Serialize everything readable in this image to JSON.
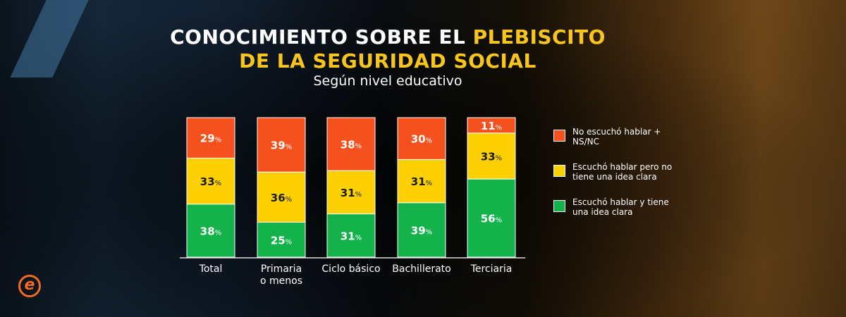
{
  "title_part1": "CONOCIMIENTO SOBRE EL ",
  "title_part2": "PLEBISCITO",
  "title_part3": "DE LA SEGURIDAD SOCIAL",
  "subtitle": "Según nivel educativo",
  "logo": "e",
  "chart_data": {
    "type": "bar",
    "stacked": true,
    "title": "CONOCIMIENTO SOBRE EL PLEBISCITO DE LA SEGURIDAD SOCIAL",
    "subtitle": "Según nivel educativo",
    "categories": [
      "Total",
      "Primaria o menos",
      "Ciclo básico",
      "Bachillerato",
      "Terciaria"
    ],
    "series": [
      {
        "name": "Escuchó hablar y tiene una idea clara",
        "color": "#14b24a",
        "values": [
          38,
          25,
          31,
          39,
          56
        ]
      },
      {
        "name": "Escuchó hablar pero no tiene una idea clara",
        "color": "#fdd000",
        "values": [
          33,
          36,
          31,
          31,
          33
        ]
      },
      {
        "name": "No escuchó hablar + NS/NC",
        "color": "#f4511e",
        "values": [
          29,
          39,
          38,
          30,
          11
        ]
      }
    ],
    "unit": "%",
    "ylim": [
      0,
      100
    ],
    "legend": "right",
    "grid": false
  }
}
